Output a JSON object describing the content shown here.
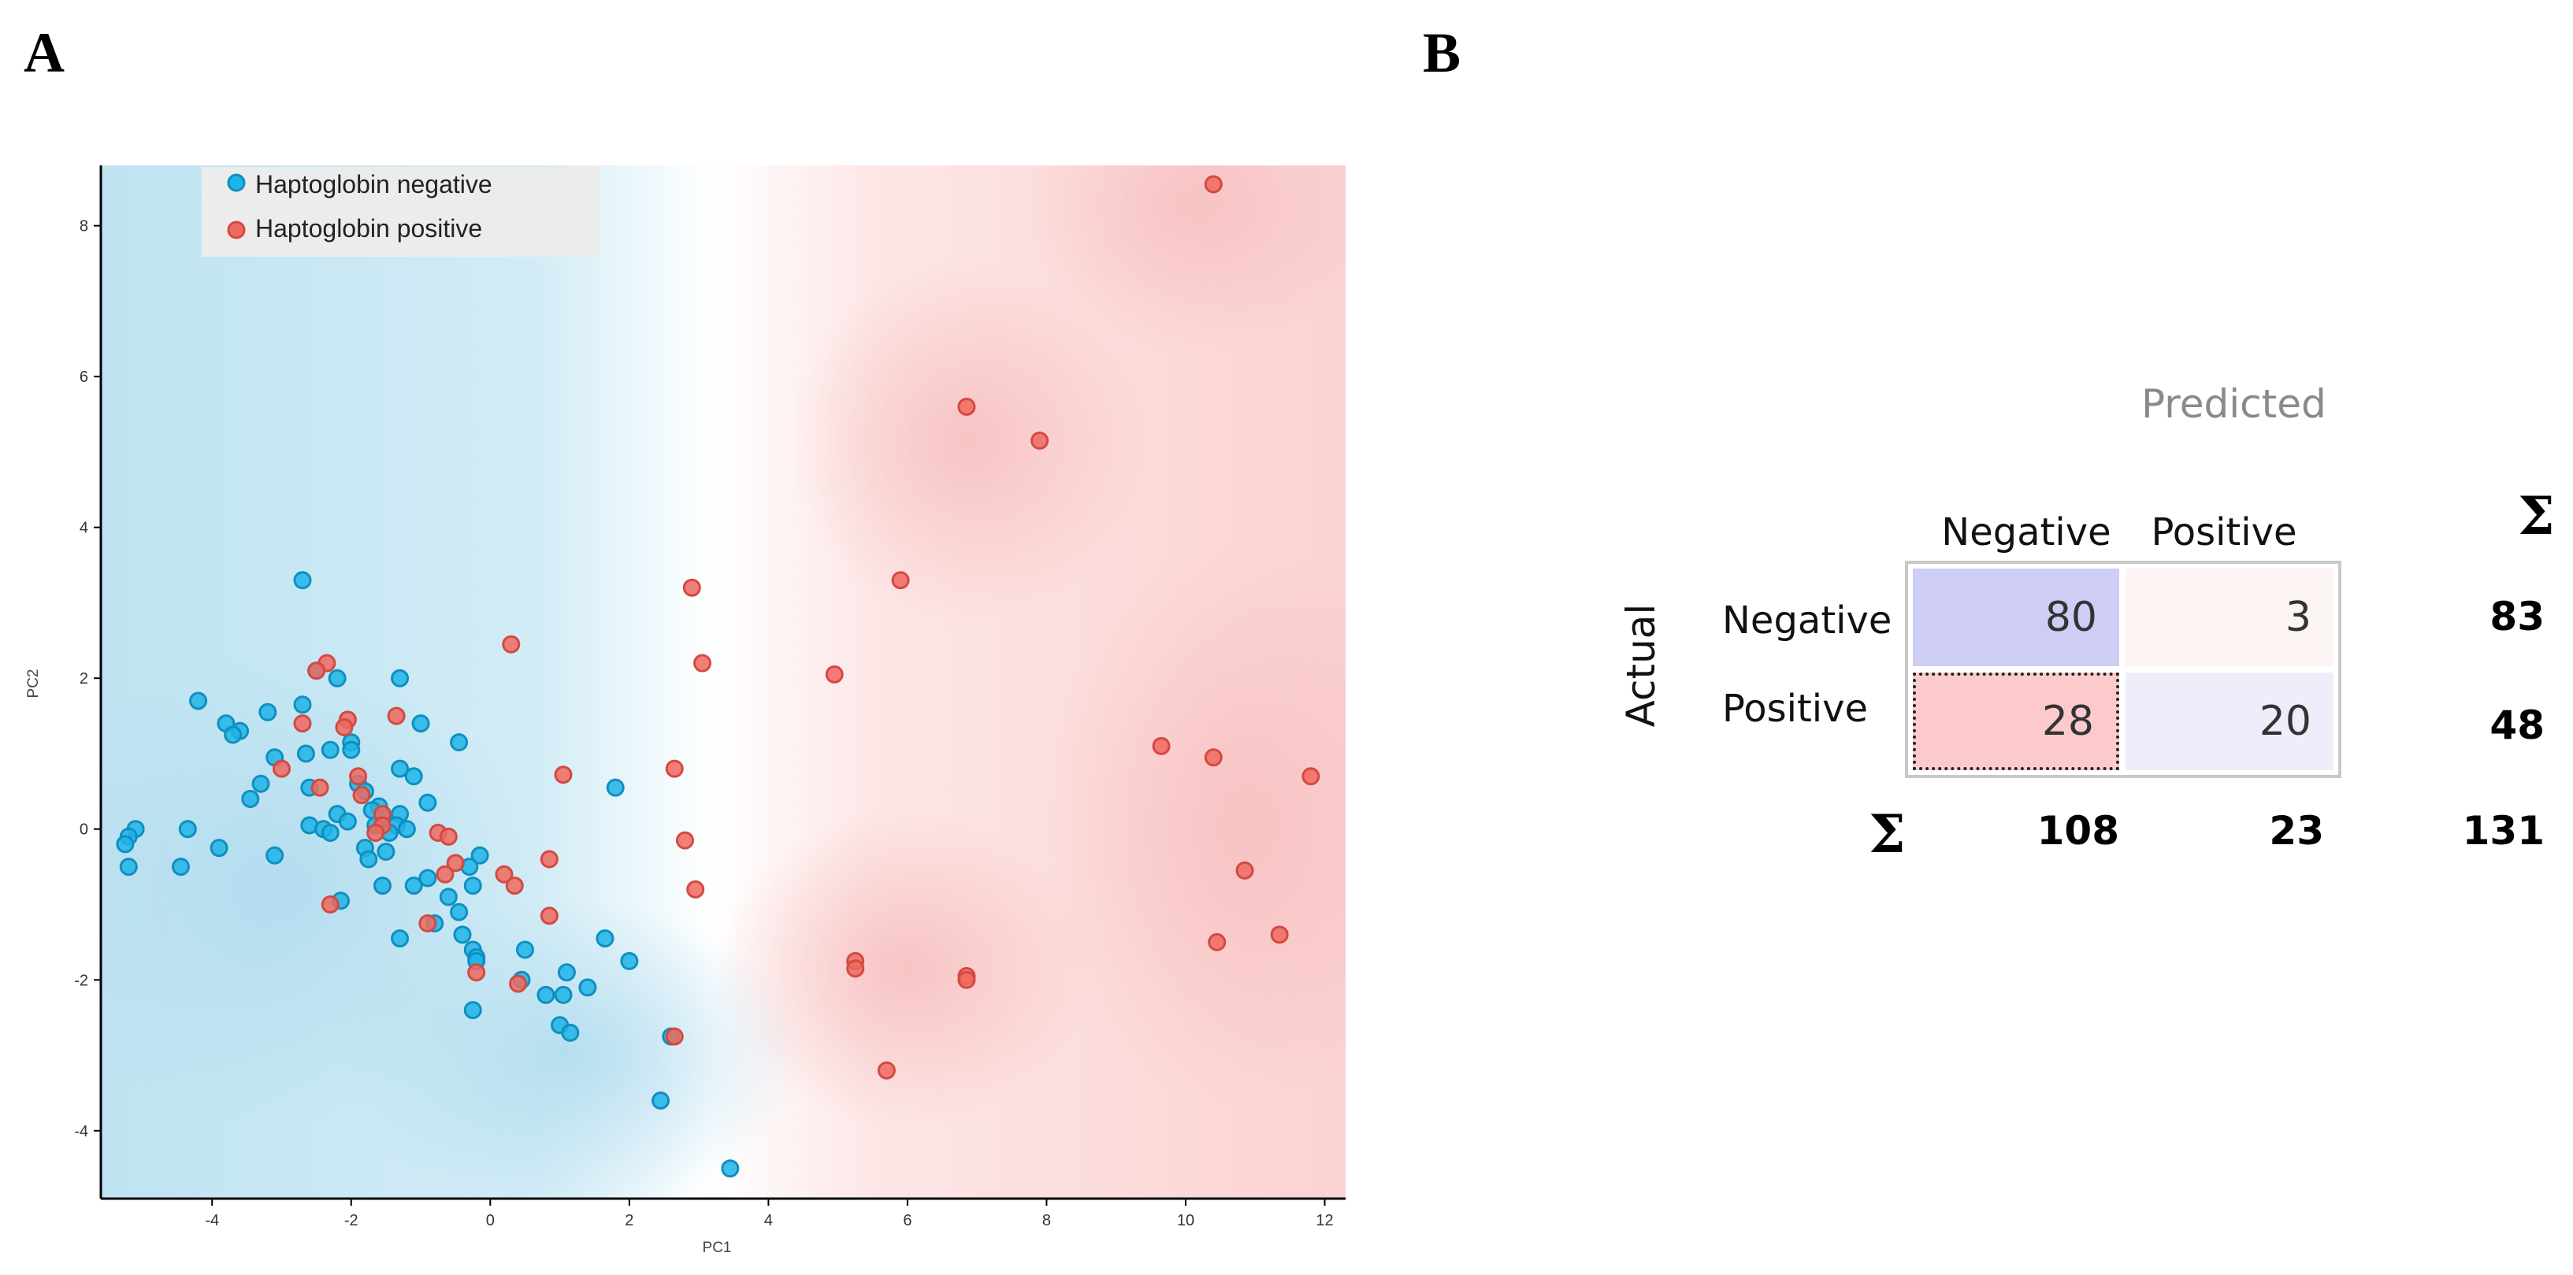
{
  "panels": {
    "a_label": "A",
    "b_label": "B"
  },
  "chart_data": [
    {
      "type": "scatter",
      "title": "",
      "xlabel": "PC1",
      "ylabel": "PC2",
      "xlim": [
        -5.6,
        12.3
      ],
      "ylim": [
        -4.9,
        8.8
      ],
      "xticks": [
        -4,
        -2,
        0,
        2,
        4,
        6,
        8,
        10,
        12
      ],
      "yticks": [
        -4,
        -2,
        0,
        2,
        4,
        6,
        8
      ],
      "legend": {
        "position": "top-left"
      },
      "colors": {
        "negative": "#1eb4e6",
        "positive": "#f0695f",
        "negative_bg": "#bfe3f2",
        "positive_bg": "#fbd6d6"
      },
      "series": [
        {
          "name": "Haptoglobin negative",
          "points": [
            [
              -2.7,
              3.3
            ],
            [
              -4.2,
              1.7
            ],
            [
              -3.2,
              1.55
            ],
            [
              -2.7,
              1.65
            ],
            [
              -2.5,
              2.1
            ],
            [
              -2.2,
              2.0
            ],
            [
              -1.3,
              2.0
            ],
            [
              -3.8,
              1.4
            ],
            [
              -3.6,
              1.3
            ],
            [
              -3.7,
              1.25
            ],
            [
              -2.3,
              1.05
            ],
            [
              -2.0,
              1.15
            ],
            [
              -2.0,
              1.05
            ],
            [
              -1.0,
              1.4
            ],
            [
              -0.45,
              1.15
            ],
            [
              -2.65,
              1.0
            ],
            [
              -3.1,
              0.95
            ],
            [
              -1.3,
              0.8
            ],
            [
              -1.1,
              0.7
            ],
            [
              -1.9,
              0.6
            ],
            [
              -3.3,
              0.6
            ],
            [
              -2.6,
              0.55
            ],
            [
              -3.45,
              0.4
            ],
            [
              -1.8,
              0.5
            ],
            [
              -0.9,
              0.35
            ],
            [
              -1.6,
              0.3
            ],
            [
              -2.2,
              0.2
            ],
            [
              -1.7,
              0.25
            ],
            [
              -1.3,
              0.2
            ],
            [
              -1.55,
              0.15
            ],
            [
              -2.05,
              0.1
            ],
            [
              -2.6,
              0.05
            ],
            [
              -2.4,
              0.0
            ],
            [
              -2.3,
              -0.05
            ],
            [
              -1.35,
              0.05
            ],
            [
              -1.2,
              0.0
            ],
            [
              -1.65,
              0.05
            ],
            [
              -1.45,
              -0.05
            ],
            [
              -1.8,
              -0.25
            ],
            [
              -1.5,
              -0.3
            ],
            [
              -1.75,
              -0.4
            ],
            [
              -0.15,
              -0.35
            ],
            [
              -0.3,
              -0.5
            ],
            [
              -0.9,
              -0.65
            ],
            [
              -1.1,
              -0.75
            ],
            [
              -1.55,
              -0.75
            ],
            [
              -0.6,
              -0.9
            ],
            [
              -0.25,
              -0.75
            ],
            [
              -0.8,
              -1.25
            ],
            [
              -2.15,
              -0.95
            ],
            [
              -0.45,
              -1.1
            ],
            [
              -0.4,
              -1.4
            ],
            [
              -1.3,
              -1.45
            ],
            [
              -0.25,
              -1.6
            ],
            [
              -0.2,
              -1.7
            ],
            [
              0.5,
              -1.6
            ],
            [
              -0.2,
              -1.75
            ],
            [
              0.45,
              -2.0
            ],
            [
              0.8,
              -2.2
            ],
            [
              1.05,
              -2.2
            ],
            [
              1.1,
              -1.9
            ],
            [
              1.4,
              -2.1
            ],
            [
              1.0,
              -2.6
            ],
            [
              1.15,
              -2.7
            ],
            [
              1.65,
              -1.45
            ],
            [
              2.0,
              -1.75
            ],
            [
              1.8,
              0.55
            ],
            [
              -0.25,
              -2.4
            ],
            [
              2.6,
              -2.75
            ],
            [
              2.45,
              -3.6
            ],
            [
              3.45,
              -4.5
            ],
            [
              -5.1,
              0.0
            ],
            [
              -5.2,
              -0.1
            ],
            [
              -5.25,
              -0.2
            ],
            [
              -5.2,
              -0.5
            ],
            [
              -4.45,
              -0.5
            ],
            [
              -4.35,
              0.0
            ],
            [
              -3.9,
              -0.25
            ],
            [
              -3.1,
              -0.35
            ]
          ]
        },
        {
          "name": "Haptoglobin positive",
          "points": [
            [
              10.4,
              8.55
            ],
            [
              6.85,
              5.6
            ],
            [
              7.9,
              5.15
            ],
            [
              5.9,
              3.3
            ],
            [
              2.9,
              3.2
            ],
            [
              0.3,
              2.45
            ],
            [
              3.05,
              2.2
            ],
            [
              4.95,
              2.05
            ],
            [
              -2.35,
              2.2
            ],
            [
              -2.5,
              2.1
            ],
            [
              -1.35,
              1.5
            ],
            [
              -2.05,
              1.45
            ],
            [
              -2.1,
              1.35
            ],
            [
              -2.7,
              1.4
            ],
            [
              -3.0,
              0.8
            ],
            [
              9.65,
              1.1
            ],
            [
              10.4,
              0.95
            ],
            [
              11.8,
              0.7
            ],
            [
              2.65,
              0.8
            ],
            [
              1.05,
              0.72
            ],
            [
              -1.9,
              0.7
            ],
            [
              -1.85,
              0.45
            ],
            [
              -2.45,
              0.55
            ],
            [
              -1.55,
              0.2
            ],
            [
              -1.55,
              0.05
            ],
            [
              -1.65,
              -0.05
            ],
            [
              -0.75,
              -0.05
            ],
            [
              -0.6,
              -0.1
            ],
            [
              2.8,
              -0.15
            ],
            [
              0.85,
              -0.4
            ],
            [
              -0.5,
              -0.45
            ],
            [
              -0.65,
              -0.6
            ],
            [
              0.2,
              -0.6
            ],
            [
              0.35,
              -0.75
            ],
            [
              2.95,
              -0.8
            ],
            [
              10.85,
              -0.55
            ],
            [
              0.85,
              -1.15
            ],
            [
              -0.9,
              -1.25
            ],
            [
              -0.2,
              -1.9
            ],
            [
              0.4,
              -2.05
            ],
            [
              5.25,
              -1.75
            ],
            [
              5.25,
              -1.85
            ],
            [
              6.85,
              -1.95
            ],
            [
              6.85,
              -2.0
            ],
            [
              10.45,
              -1.5
            ],
            [
              11.35,
              -1.4
            ],
            [
              2.65,
              -2.75
            ],
            [
              5.7,
              -3.2
            ],
            [
              -2.3,
              -1.0
            ]
          ]
        }
      ]
    },
    {
      "type": "table",
      "title": "Predicted",
      "row_title": "Actual",
      "column_headers": [
        "Negative",
        "Positive"
      ],
      "row_headers": [
        "Negative",
        "Positive"
      ],
      "sum_symbol": "Σ",
      "matrix": [
        [
          "80",
          "3"
        ],
        [
          "28",
          "20"
        ]
      ],
      "row_sums": [
        "83",
        "48"
      ],
      "column_sums": [
        "108",
        "23"
      ],
      "total": "131",
      "colors": {
        "tn": "#cdcdf5",
        "fp": "#fdf4f4",
        "fn": "#fccaca",
        "tp": "#eeeefb"
      }
    }
  ]
}
